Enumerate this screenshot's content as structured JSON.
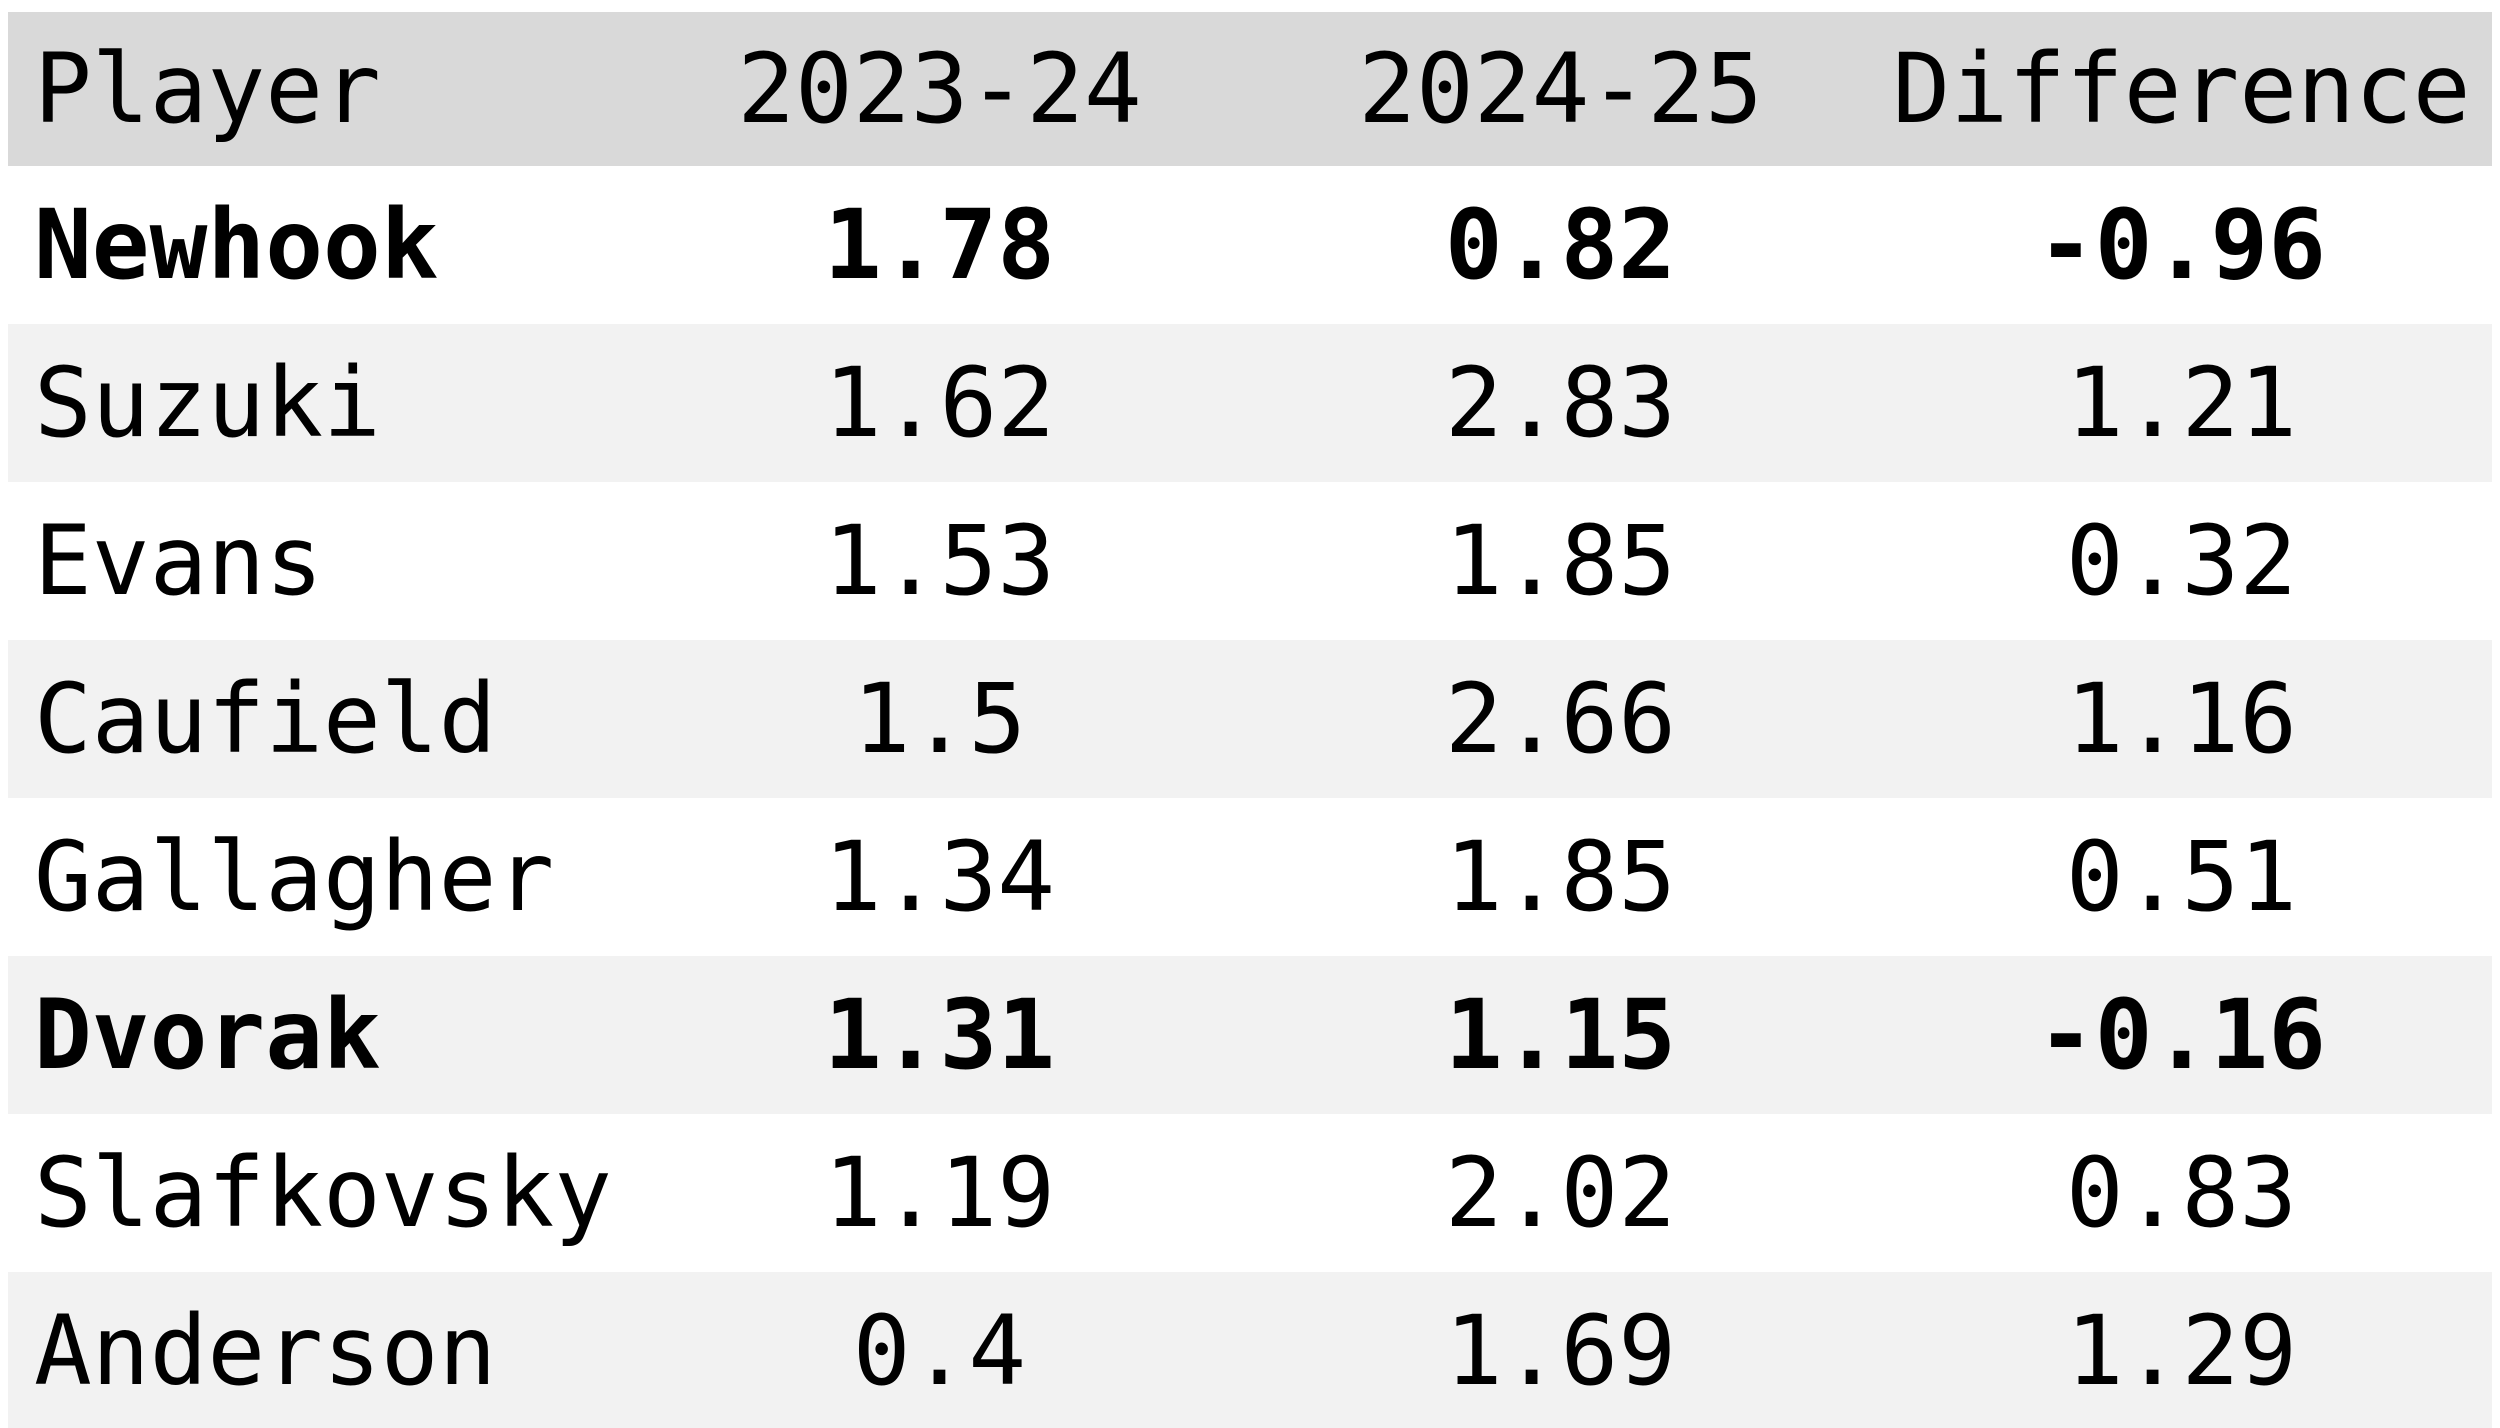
{
  "colors": {
    "header_bg": "#d9d9d9",
    "stripe_bg": "#f2f2f2",
    "row_bg": "#ffffff",
    "text": "#000000"
  },
  "chart_data": {
    "type": "table",
    "title": "",
    "columns": [
      "Player",
      "2023-24",
      "2024-25",
      "Difference"
    ],
    "rows": [
      {
        "player": "Newhook",
        "values": [
          "1.78",
          "0.82",
          "-0.96"
        ],
        "bold": true
      },
      {
        "player": "Suzuki",
        "values": [
          "1.62",
          "2.83",
          "1.21"
        ],
        "bold": false
      },
      {
        "player": "Evans",
        "values": [
          "1.53",
          "1.85",
          "0.32"
        ],
        "bold": false
      },
      {
        "player": "Caufield",
        "values": [
          "1.5",
          "2.66",
          "1.16"
        ],
        "bold": false
      },
      {
        "player": "Gallagher",
        "values": [
          "1.34",
          "1.85",
          "0.51"
        ],
        "bold": false
      },
      {
        "player": "Dvorak",
        "values": [
          "1.31",
          "1.15",
          "-0.16"
        ],
        "bold": true
      },
      {
        "player": "Slafkovsky",
        "values": [
          "1.19",
          "2.02",
          "0.83"
        ],
        "bold": false
      },
      {
        "player": "Anderson",
        "values": [
          "0.4",
          "1.69",
          "1.29"
        ],
        "bold": false
      }
    ]
  }
}
